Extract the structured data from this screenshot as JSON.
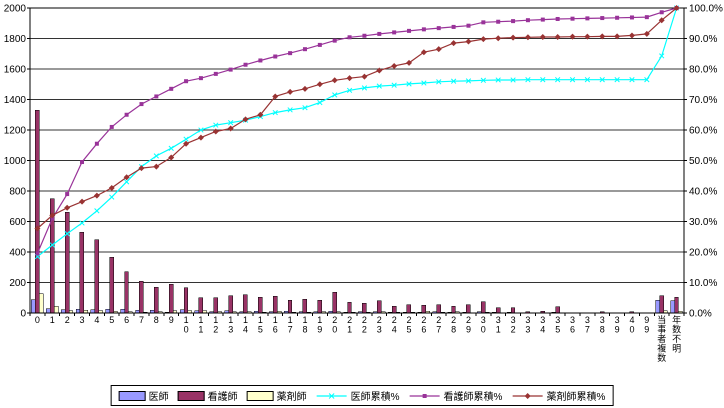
{
  "chart_data": {
    "type": "combo-bar-line",
    "title": "",
    "xlabel": "",
    "categories": [
      "0",
      "1",
      "2",
      "3",
      "4",
      "5",
      "6",
      "7",
      "8",
      "9",
      "10",
      "11",
      "12",
      "13",
      "14",
      "15",
      "16",
      "17",
      "18",
      "19",
      "20",
      "21",
      "22",
      "23",
      "24",
      "25",
      "26",
      "27",
      "28",
      "29",
      "30",
      "31",
      "32",
      "33",
      "34",
      "35",
      "36",
      "37",
      "38",
      "39",
      "40",
      "99",
      "当事者複数",
      "年数不明"
    ],
    "bar_series": [
      {
        "name": "医師",
        "color": "#9999FF",
        "values": [
          88,
          28,
          20,
          25,
          20,
          25,
          25,
          18,
          18,
          6,
          20,
          14,
          10,
          14,
          10,
          12,
          10,
          12,
          10,
          8,
          12,
          6,
          10,
          8,
          6,
          6,
          4,
          8,
          4,
          6,
          8,
          4,
          4,
          2,
          2,
          4,
          0,
          2,
          2,
          0,
          2,
          0,
          85,
          80
        ]
      },
      {
        "name": "看護師",
        "color": "#993366",
        "values": [
          1330,
          750,
          660,
          530,
          480,
          365,
          270,
          210,
          170,
          190,
          165,
          100,
          100,
          115,
          120,
          105,
          110,
          85,
          90,
          85,
          135,
          70,
          65,
          80,
          45,
          55,
          50,
          55,
          45,
          55,
          75,
          35,
          35,
          10,
          12,
          40,
          3,
          3,
          10,
          3,
          10,
          3,
          115,
          105
        ]
      },
      {
        "name": "薬剤師",
        "color": "#FFFFCC",
        "values": [
          125,
          45,
          15,
          18,
          14,
          12,
          8,
          6,
          8,
          14,
          14,
          16,
          8,
          10,
          8,
          6,
          12,
          6,
          6,
          8,
          10,
          4,
          4,
          8,
          6,
          4,
          12,
          4,
          8,
          2,
          4,
          2,
          2,
          0,
          0,
          2,
          0,
          0,
          2,
          0,
          2,
          2,
          15,
          12
        ]
      }
    ],
    "line_series": [
      {
        "name": "医師累積%",
        "color": "#00FFFF",
        "marker": "x",
        "values": [
          18.5,
          22.3,
          26,
          29.5,
          33.5,
          38,
          43,
          48,
          51.5,
          54,
          57,
          60,
          61.6,
          62.4,
          63.2,
          64.4,
          65.7,
          66.6,
          67.3,
          69,
          71.5,
          73,
          73.8,
          74.4,
          74.7,
          75.1,
          75.4,
          75.8,
          76,
          76.1,
          76.3,
          76.4,
          76.4,
          76.5,
          76.5,
          76.5,
          76.5,
          76.5,
          76.5,
          76.5,
          76.5,
          76.5,
          84.3,
          100
        ]
      },
      {
        "name": "看護師累積%",
        "color": "#993399",
        "marker": "square",
        "values": [
          19.5,
          31,
          39,
          49.5,
          55.5,
          61,
          65,
          68.5,
          71,
          73.5,
          76,
          77,
          78.4,
          79.8,
          81.4,
          82.8,
          84.1,
          85.2,
          86.5,
          87.9,
          89.3,
          90.4,
          90.9,
          91.5,
          92,
          92.5,
          93,
          93.4,
          93.8,
          94.2,
          95.3,
          95.5,
          95.7,
          96,
          96.2,
          96.4,
          96.5,
          96.6,
          96.7,
          96.8,
          96.9,
          97,
          98.6,
          100
        ]
      },
      {
        "name": "薬剤師累積%",
        "color": "#993333",
        "marker": "diamond",
        "values": [
          27.7,
          32,
          34.5,
          36.5,
          38.5,
          41,
          44.5,
          47.5,
          48,
          51,
          55.5,
          57.5,
          59.5,
          60.5,
          63.5,
          65,
          71,
          72.5,
          73.5,
          75,
          76.3,
          77,
          77.5,
          79.5,
          81,
          82,
          85.5,
          86.5,
          88.5,
          89,
          89.8,
          90.1,
          90.3,
          90.4,
          90.5,
          90.5,
          90.6,
          90.6,
          90.7,
          90.7,
          91,
          91.5,
          96,
          100
        ]
      }
    ],
    "left_axis": {
      "min": 0,
      "max": 2000,
      "step": 200,
      "labels": [
        "0",
        "200",
        "400",
        "600",
        "800",
        "1000",
        "1200",
        "1400",
        "1600",
        "1800",
        "2000"
      ]
    },
    "right_axis": {
      "min": 0,
      "max": 100,
      "step": 10,
      "labels": [
        "0.0%",
        "10.0%",
        "20.0%",
        "30.0%",
        "40.0%",
        "50.0%",
        "60.0%",
        "70.0%",
        "80.0%",
        "90.0%",
        "100.0%"
      ]
    },
    "legend": [
      "医師",
      "看護師",
      "薬剤師",
      "医師累積%",
      "看護師累積%",
      "薬剤師累積%"
    ],
    "grid": "horizontal",
    "legend_position": "bottom"
  }
}
